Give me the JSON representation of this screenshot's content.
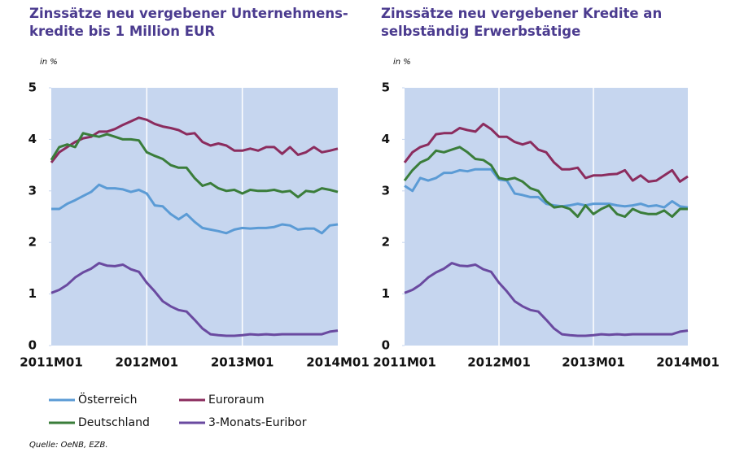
{
  "chart_data": [
    {
      "type": "line",
      "title": "Zinssätze neu vergebener Unternehmens-\nkredite bis 1 Million EUR",
      "ylabel": "in %",
      "categories": [
        "2011M01",
        null,
        null,
        null,
        null,
        null,
        null,
        null,
        null,
        null,
        null,
        null,
        "2012M01",
        null,
        null,
        null,
        null,
        null,
        null,
        null,
        null,
        null,
        null,
        null,
        "2013M01",
        null,
        null,
        null,
        null,
        null,
        null,
        null,
        null,
        null,
        null,
        null,
        "2014M01"
      ],
      "ylim": [
        0,
        5
      ],
      "yticks": [
        0,
        1,
        2,
        3,
        4,
        5
      ],
      "series": [
        {
          "name": "Österreich",
          "color": "#5b9bd5",
          "values": [
            2.65,
            2.65,
            2.75,
            2.82,
            2.9,
            2.98,
            3.12,
            3.05,
            3.05,
            3.03,
            2.98,
            3.02,
            2.95,
            2.72,
            2.7,
            2.55,
            2.45,
            2.55,
            2.4,
            2.28,
            2.25,
            2.22,
            2.18,
            2.25,
            2.28,
            2.27,
            2.28,
            2.28,
            2.3,
            2.35,
            2.33,
            2.25,
            2.27,
            2.27,
            2.18,
            2.33,
            2.35
          ]
        },
        {
          "name": "Euroraum",
          "color": "#8b2c5e",
          "values": [
            3.55,
            3.75,
            3.85,
            3.95,
            4.02,
            4.05,
            4.15,
            4.15,
            4.2,
            4.28,
            4.35,
            4.42,
            4.38,
            4.3,
            4.25,
            4.22,
            4.18,
            4.1,
            4.12,
            3.95,
            3.88,
            3.92,
            3.88,
            3.78,
            3.78,
            3.82,
            3.78,
            3.85,
            3.85,
            3.72,
            3.85,
            3.7,
            3.75,
            3.85,
            3.75,
            3.78,
            3.82
          ]
        },
        {
          "name": "Deutschland",
          "color": "#3a7d3a",
          "values": [
            3.6,
            3.85,
            3.9,
            3.85,
            4.12,
            4.08,
            4.05,
            4.1,
            4.05,
            4.0,
            4.0,
            3.98,
            3.75,
            3.68,
            3.62,
            3.5,
            3.45,
            3.45,
            3.25,
            3.1,
            3.15,
            3.05,
            3.0,
            3.02,
            2.95,
            3.02,
            3.0,
            3.0,
            3.02,
            2.98,
            3.0,
            2.88,
            3.0,
            2.98,
            3.05,
            3.02,
            2.98
          ]
        },
        {
          "name": "3-Monats-Euribor",
          "color": "#6a4aa0",
          "values": [
            1.02,
            1.08,
            1.18,
            1.32,
            1.42,
            1.49,
            1.6,
            1.55,
            1.54,
            1.57,
            1.48,
            1.43,
            1.22,
            1.05,
            0.86,
            0.76,
            0.69,
            0.66,
            0.5,
            0.33,
            0.22,
            0.2,
            0.19,
            0.19,
            0.2,
            0.22,
            0.21,
            0.22,
            0.21,
            0.22,
            0.22,
            0.22,
            0.22,
            0.22,
            0.22,
            0.27,
            0.29
          ]
        }
      ]
    },
    {
      "type": "line",
      "title": "Zinssätze neu vergebener Kredite an\nselbständig Erwerbstätige",
      "ylabel": "in %",
      "categories": [
        "2011M01",
        null,
        null,
        null,
        null,
        null,
        null,
        null,
        null,
        null,
        null,
        null,
        "2012M01",
        null,
        null,
        null,
        null,
        null,
        null,
        null,
        null,
        null,
        null,
        null,
        "2013M01",
        null,
        null,
        null,
        null,
        null,
        null,
        null,
        null,
        null,
        null,
        null,
        "2014M01"
      ],
      "ylim": [
        0,
        5
      ],
      "yticks": [
        0,
        1,
        2,
        3,
        4,
        5
      ],
      "series": [
        {
          "name": "Österreich",
          "color": "#5b9bd5",
          "values": [
            3.1,
            3.0,
            3.25,
            3.2,
            3.25,
            3.35,
            3.35,
            3.4,
            3.38,
            3.42,
            3.42,
            3.42,
            3.22,
            3.2,
            2.95,
            2.92,
            2.88,
            2.88,
            2.75,
            2.72,
            2.7,
            2.72,
            2.75,
            2.72,
            2.75,
            2.75,
            2.75,
            2.72,
            2.7,
            2.72,
            2.75,
            2.7,
            2.72,
            2.68,
            2.8,
            2.7,
            2.68
          ]
        },
        {
          "name": "Euroraum",
          "color": "#8b2c5e",
          "values": [
            3.55,
            3.75,
            3.85,
            3.9,
            4.1,
            4.12,
            4.12,
            4.22,
            4.18,
            4.15,
            4.3,
            4.2,
            4.05,
            4.05,
            3.95,
            3.9,
            3.95,
            3.8,
            3.75,
            3.55,
            3.42,
            3.42,
            3.45,
            3.25,
            3.3,
            3.3,
            3.32,
            3.33,
            3.4,
            3.2,
            3.3,
            3.18,
            3.2,
            3.3,
            3.4,
            3.18,
            3.28
          ]
        },
        {
          "name": "Deutschland",
          "color": "#3a7d3a",
          "values": [
            3.2,
            3.4,
            3.55,
            3.62,
            3.78,
            3.75,
            3.8,
            3.85,
            3.75,
            3.62,
            3.6,
            3.5,
            3.25,
            3.22,
            3.25,
            3.18,
            3.05,
            3.0,
            2.8,
            2.68,
            2.7,
            2.65,
            2.5,
            2.72,
            2.55,
            2.65,
            2.72,
            2.55,
            2.5,
            2.65,
            2.58,
            2.55,
            2.55,
            2.62,
            2.5,
            2.65,
            2.65
          ]
        },
        {
          "name": "3-Monats-Euribor",
          "color": "#6a4aa0",
          "values": [
            1.02,
            1.08,
            1.18,
            1.32,
            1.42,
            1.49,
            1.6,
            1.55,
            1.54,
            1.57,
            1.48,
            1.43,
            1.22,
            1.05,
            0.86,
            0.76,
            0.69,
            0.66,
            0.5,
            0.33,
            0.22,
            0.2,
            0.19,
            0.19,
            0.2,
            0.22,
            0.21,
            0.22,
            0.21,
            0.22,
            0.22,
            0.22,
            0.22,
            0.22,
            0.22,
            0.27,
            0.29
          ]
        }
      ]
    }
  ],
  "source": "Quelle: OeNB, EZB."
}
